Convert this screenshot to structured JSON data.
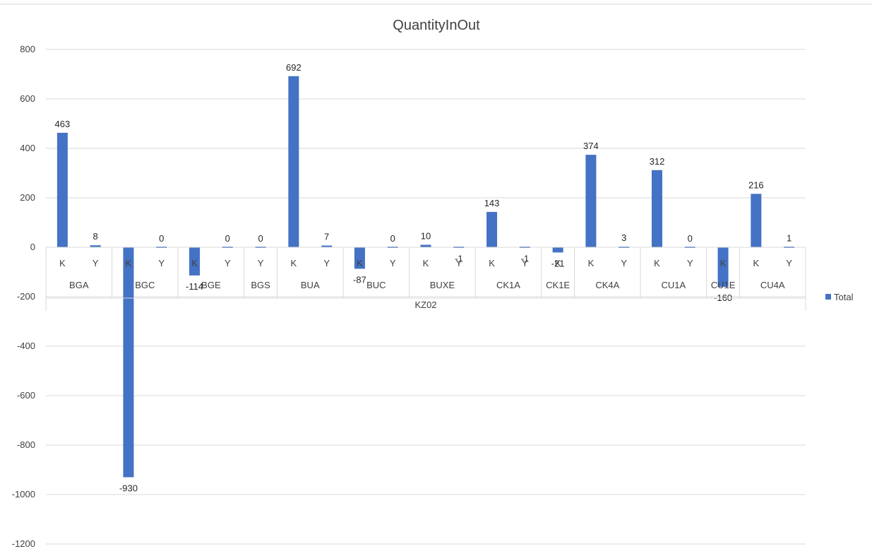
{
  "chart_data": {
    "type": "bar",
    "title": "QuantityInOut",
    "xlabel": "",
    "ylabel": "",
    "ylim": [
      -1200,
      800
    ],
    "y_ticks": [
      800,
      600,
      400,
      200,
      0,
      -200,
      -400,
      -600,
      -800,
      -1000,
      -1200
    ],
    "grid": true,
    "legend_position": "right",
    "bar_color": "#4472C4",
    "top_group": "KZ02",
    "groups": [
      {
        "name": "BGA",
        "items": [
          {
            "label": "K",
            "value": 463
          },
          {
            "label": "Y",
            "value": 8
          }
        ]
      },
      {
        "name": "BGC",
        "items": [
          {
            "label": "K",
            "value": -930
          },
          {
            "label": "Y",
            "value": 0
          }
        ]
      },
      {
        "name": "BGE",
        "items": [
          {
            "label": "K",
            "value": -114
          },
          {
            "label": "Y",
            "value": 0
          }
        ]
      },
      {
        "name": "BGS",
        "items": [
          {
            "label": "Y",
            "value": 0
          }
        ]
      },
      {
        "name": "BUA",
        "items": [
          {
            "label": "K",
            "value": 692
          },
          {
            "label": "Y",
            "value": 7
          }
        ]
      },
      {
        "name": "BUC",
        "items": [
          {
            "label": "K",
            "value": -87
          },
          {
            "label": "Y",
            "value": 0
          }
        ]
      },
      {
        "name": "BUXE",
        "items": [
          {
            "label": "K",
            "value": 10
          },
          {
            "label": "Y",
            "value": -1
          }
        ]
      },
      {
        "name": "CK1A",
        "items": [
          {
            "label": "K",
            "value": 143
          },
          {
            "label": "Y",
            "value": -1
          }
        ]
      },
      {
        "name": "CK1E",
        "items": [
          {
            "label": "K",
            "value": -21
          }
        ]
      },
      {
        "name": "CK4A",
        "items": [
          {
            "label": "K",
            "value": 374
          },
          {
            "label": "Y",
            "value": 3
          }
        ]
      },
      {
        "name": "CU1A",
        "items": [
          {
            "label": "K",
            "value": 312
          },
          {
            "label": "Y",
            "value": 0
          }
        ]
      },
      {
        "name": "CU1E",
        "items": [
          {
            "label": "K",
            "value": -160
          }
        ]
      },
      {
        "name": "CU4A",
        "items": [
          {
            "label": "K",
            "value": 216
          },
          {
            "label": "Y",
            "value": 1
          }
        ]
      }
    ],
    "series": [
      {
        "name": "Total"
      }
    ]
  }
}
